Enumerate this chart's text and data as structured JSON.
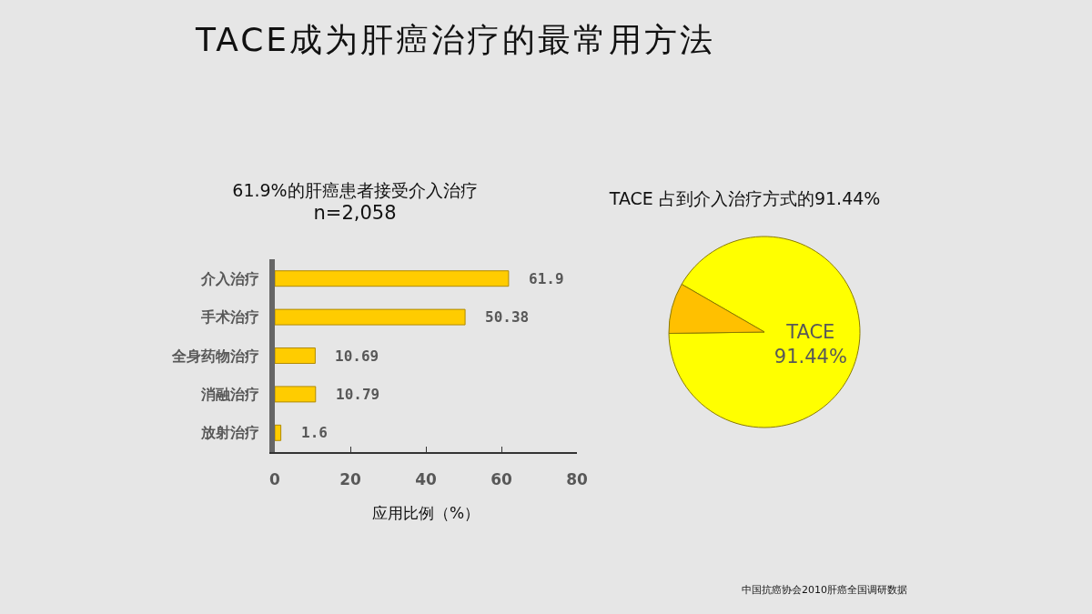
{
  "chart_data": [
    {
      "type": "other",
      "title": "TACE成为肝癌治疗的最常用方法",
      "annotations": [
        "中国抗癌协会2010肝癌全国调研数据"
      ]
    },
    {
      "type": "bar",
      "orientation": "horizontal",
      "title": "61.9%的肝癌患者接受介入治疗",
      "subtitle": "n=2,058",
      "categories": [
        "介入治疗",
        "手术治疗",
        "全身药物治疗",
        "消融治疗",
        "放射治疗"
      ],
      "values": [
        61.9,
        50.38,
        10.69,
        10.79,
        1.6
      ],
      "color": "#ffcc00",
      "xlabel": "应用比例（%）",
      "xlim": [
        0,
        80
      ],
      "xticks": [
        0,
        20,
        40,
        60,
        80
      ],
      "data_labels": true
    },
    {
      "type": "pie",
      "title": "TACE 占到介入治疗方式的91.44%",
      "categories": [
        "TACE",
        null
      ],
      "values": [
        91.44,
        8.56
      ],
      "colors": [
        "#ffff00",
        "#ffc000"
      ],
      "value_labels": [
        "91.44%",
        null
      ]
    }
  ]
}
